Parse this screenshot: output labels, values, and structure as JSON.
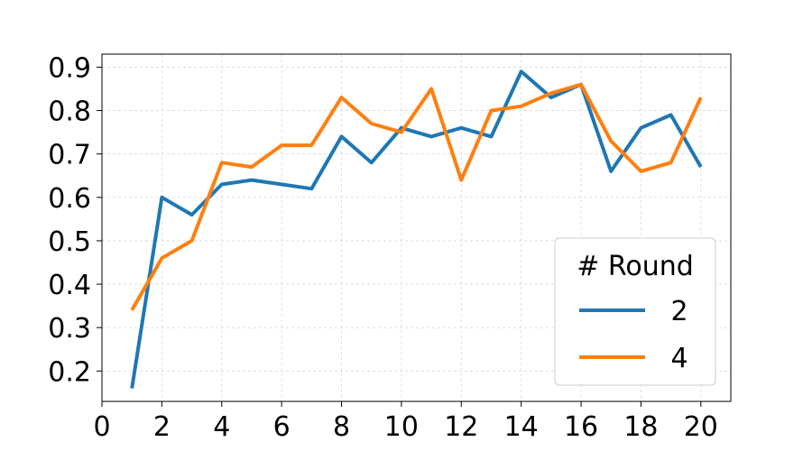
{
  "chart_data": {
    "type": "line",
    "title": "",
    "xlabel": "",
    "ylabel": "",
    "xlim": [
      0,
      21
    ],
    "ylim": [
      0.13,
      0.93
    ],
    "xticks": [
      0,
      2,
      4,
      6,
      8,
      10,
      12,
      14,
      16,
      18,
      20
    ],
    "yticks": [
      0.2,
      0.3,
      0.4,
      0.5,
      0.6,
      0.7,
      0.8,
      0.9
    ],
    "xtick_labels": [
      "0",
      "2",
      "4",
      "6",
      "8",
      "10",
      "12",
      "14",
      "16",
      "18",
      "20"
    ],
    "ytick_labels": [
      "0.2",
      "0.3",
      "0.4",
      "0.5",
      "0.6",
      "0.7",
      "0.8",
      "0.9"
    ],
    "grid": true,
    "legend": {
      "title": "# Round",
      "placement": "lower-right"
    },
    "x": [
      1,
      2,
      3,
      4,
      5,
      6,
      7,
      8,
      9,
      10,
      11,
      12,
      13,
      14,
      15,
      16,
      17,
      18,
      19,
      20
    ],
    "series": [
      {
        "name": "2",
        "color": "#1f77b4",
        "values": [
          0.16,
          0.6,
          0.56,
          0.63,
          0.64,
          0.63,
          0.62,
          0.74,
          0.68,
          0.76,
          0.74,
          0.76,
          0.74,
          0.89,
          0.83,
          0.86,
          0.66,
          0.76,
          0.79,
          0.67
        ]
      },
      {
        "name": "4",
        "color": "#ff7f0e",
        "values": [
          0.34,
          0.46,
          0.5,
          0.68,
          0.67,
          0.72,
          0.72,
          0.83,
          0.77,
          0.75,
          0.85,
          0.64,
          0.8,
          0.81,
          0.84,
          0.86,
          0.73,
          0.66,
          0.68,
          0.83
        ]
      }
    ]
  }
}
